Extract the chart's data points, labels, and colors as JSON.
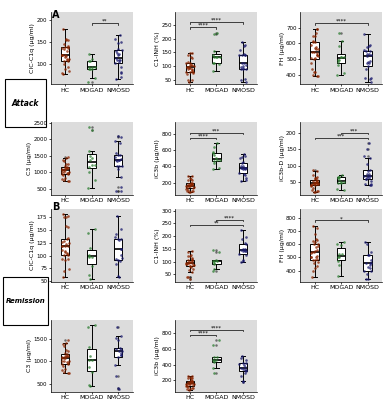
{
  "fig_bg": "#ffffff",
  "plot_bg": "#dcdcdc",
  "hc_color": "#8B2500",
  "mogad_color": "#2E7D32",
  "nmosd_color": "#1a1a6e",
  "groups": [
    "HC",
    "MOGAD",
    "NMOSD"
  ],
  "attack_row1": {
    "CIC_C1q": {
      "ylabel": "CIC-C1q (µg/ml)",
      "hc": {
        "median": 120,
        "q1": 105,
        "q3": 140,
        "whislo": 70,
        "whishi": 185,
        "n": 30
      },
      "mogad": {
        "median": 92,
        "q1": 75,
        "q3": 108,
        "whislo": 55,
        "whishi": 145,
        "n": 12
      },
      "nmosd": {
        "median": 108,
        "q1": 88,
        "q3": 135,
        "whislo": 55,
        "whishi": 185,
        "n": 22
      },
      "sig": [
        [
          "MOGAD",
          "NMOSD",
          "**"
        ]
      ]
    },
    "C1_INH": {
      "ylabel": "C1-INH (%)",
      "hc": {
        "median": 95,
        "q1": 78,
        "q3": 112,
        "whislo": 28,
        "whishi": 155,
        "n": 30
      },
      "mogad": {
        "median": 132,
        "q1": 108,
        "q3": 162,
        "whislo": 58,
        "whishi": 225,
        "n": 12
      },
      "nmosd": {
        "median": 112,
        "q1": 88,
        "q3": 148,
        "whislo": 38,
        "whishi": 195,
        "n": 22
      },
      "sig": [
        [
          "HC",
          "MOGAD",
          "****"
        ],
        [
          "HC",
          "NMOSD",
          "****"
        ]
      ]
    },
    "FH": {
      "ylabel": "FH (µg/ml)",
      "hc": {
        "median": 545,
        "q1": 475,
        "q3": 615,
        "whislo": 340,
        "whishi": 740,
        "n": 30
      },
      "mogad": {
        "median": 515,
        "q1": 442,
        "q3": 585,
        "whislo": 310,
        "whishi": 695,
        "n": 12
      },
      "nmosd": {
        "median": 475,
        "q1": 395,
        "q3": 555,
        "whislo": 295,
        "whishi": 672,
        "n": 22
      },
      "sig": [
        [
          "HC",
          "NMOSD",
          "****"
        ]
      ]
    }
  },
  "attack_row2": {
    "C3": {
      "ylabel": "C3 (µg/ml)",
      "hc": {
        "median": 1080,
        "q1": 940,
        "q3": 1230,
        "whislo": 680,
        "whishi": 1480,
        "n": 30
      },
      "mogad": {
        "median": 1230,
        "q1": 880,
        "q3": 1680,
        "whislo": 380,
        "whishi": 2380,
        "n": 12
      },
      "nmosd": {
        "median": 1190,
        "q1": 880,
        "q3": 1580,
        "whislo": 380,
        "whishi": 2180,
        "n": 22
      },
      "sig": []
    },
    "iC3b": {
      "ylabel": "iC3b (µg/ml)",
      "hc": {
        "median": 158,
        "q1": 128,
        "q3": 205,
        "whislo": 78,
        "whishi": 330,
        "n": 30
      },
      "mogad": {
        "median": 475,
        "q1": 395,
        "q3": 572,
        "whislo": 275,
        "whishi": 688,
        "n": 12
      },
      "nmosd": {
        "median": 375,
        "q1": 295,
        "q3": 472,
        "whislo": 195,
        "whishi": 568,
        "n": 22
      },
      "sig": [
        [
          "HC",
          "MOGAD",
          "****"
        ],
        [
          "HC",
          "NMOSD",
          "***"
        ]
      ]
    },
    "iC3b_D": {
      "ylabel": "iC3b-D (µg/ml)",
      "hc": {
        "median": 44,
        "q1": 34,
        "q3": 58,
        "whislo": 18,
        "whishi": 88,
        "n": 30
      },
      "mogad": {
        "median": 50,
        "q1": 38,
        "q3": 65,
        "whislo": 22,
        "whishi": 98,
        "n": 12
      },
      "nmosd": {
        "median": 73,
        "q1": 52,
        "q3": 108,
        "whislo": 28,
        "whishi": 175,
        "n": 22
      },
      "sig": [
        [
          "HC",
          "NMOSD",
          "***"
        ],
        [
          "MOGAD",
          "NMOSD",
          "***"
        ]
      ]
    }
  },
  "remission_row1": {
    "CIC_C1q": {
      "ylabel": "CIC-C1q (µg/ml)",
      "hc": {
        "median": 118,
        "q1": 98,
        "q3": 142,
        "whislo": 58,
        "whishi": 195,
        "n": 30
      },
      "mogad": {
        "median": 98,
        "q1": 78,
        "q3": 118,
        "whislo": 48,
        "whishi": 155,
        "n": 8
      },
      "nmosd": {
        "median": 112,
        "q1": 88,
        "q3": 138,
        "whislo": 52,
        "whishi": 178,
        "n": 18
      },
      "sig": []
    },
    "C1_INH": {
      "ylabel": "C1-INH (%)",
      "hc": {
        "median": 93,
        "q1": 78,
        "q3": 112,
        "whislo": 28,
        "whishi": 148,
        "n": 30
      },
      "mogad": {
        "median": 102,
        "q1": 85,
        "q3": 122,
        "whislo": 58,
        "whishi": 152,
        "n": 8
      },
      "nmosd": {
        "median": 142,
        "q1": 118,
        "q3": 178,
        "whislo": 78,
        "whishi": 228,
        "n": 18
      },
      "sig": [
        [
          "HC",
          "NMOSD",
          "**"
        ],
        [
          "MOGAD",
          "NMOSD",
          "****"
        ]
      ]
    },
    "FH": {
      "ylabel": "FH (µg/ml)",
      "hc": {
        "median": 542,
        "q1": 475,
        "q3": 615,
        "whislo": 345,
        "whishi": 742,
        "n": 30
      },
      "mogad": {
        "median": 525,
        "q1": 455,
        "q3": 595,
        "whislo": 325,
        "whishi": 695,
        "n": 8
      },
      "nmosd": {
        "median": 455,
        "q1": 375,
        "q3": 535,
        "whislo": 285,
        "whishi": 645,
        "n": 18
      },
      "sig": [
        [
          "HC",
          "NMOSD",
          "*"
        ]
      ]
    }
  },
  "remission_row2": {
    "C3": {
      "ylabel": "C3 (µg/ml)",
      "hc": {
        "median": 1080,
        "q1": 940,
        "q3": 1230,
        "whislo": 680,
        "whishi": 1480,
        "n": 30
      },
      "mogad": {
        "median": 1020,
        "q1": 730,
        "q3": 1330,
        "whislo": 330,
        "whishi": 1980,
        "n": 8
      },
      "nmosd": {
        "median": 1130,
        "q1": 830,
        "q3": 1480,
        "whislo": 380,
        "whishi": 2080,
        "n": 18
      },
      "sig": []
    },
    "iC3b": {
      "ylabel": "iC3b (µg/ml)",
      "hc": {
        "median": 158,
        "q1": 128,
        "q3": 205,
        "whislo": 78,
        "whishi": 295,
        "n": 30
      },
      "mogad": {
        "median": 492,
        "q1": 415,
        "q3": 592,
        "whislo": 285,
        "whishi": 712,
        "n": 8
      },
      "nmosd": {
        "median": 332,
        "q1": 262,
        "q3": 432,
        "whislo": 175,
        "whishi": 542,
        "n": 18
      },
      "sig": [
        [
          "HC",
          "MOGAD",
          "****"
        ],
        [
          "HC",
          "NMOSD",
          "****"
        ]
      ]
    }
  }
}
